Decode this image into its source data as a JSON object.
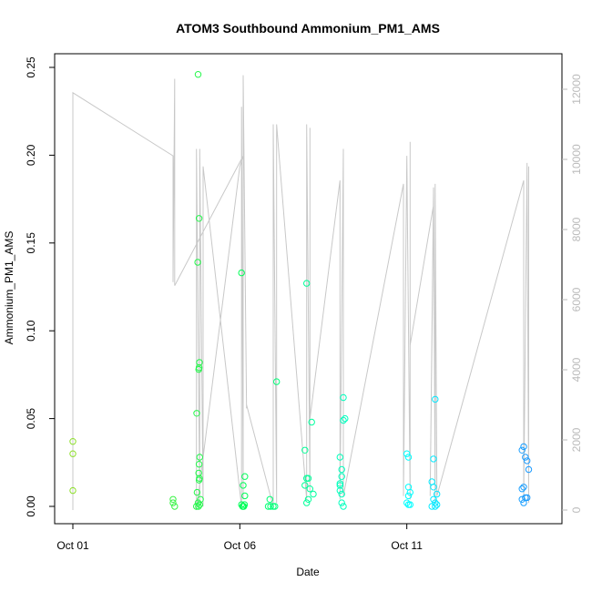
{
  "chart_data": {
    "type": "scatter",
    "title": "ATOM3 Southbound Ammonium_PM1_AMS",
    "xlabel": "Date",
    "ylabel": "Ammonium_PM1_AMS",
    "x_ticks": [
      "Oct 01",
      "Oct 06",
      "Oct 11"
    ],
    "x_tick_days": [
      1,
      6,
      11
    ],
    "xlim": [
      1,
      15.1
    ],
    "ylim": [
      0,
      0.25
    ],
    "y_ticks": [
      0.0,
      0.05,
      0.1,
      0.15,
      0.2,
      0.25
    ],
    "y_tick_labels": [
      "0.00",
      "0.05",
      "0.10",
      "0.15",
      "0.20",
      "0.25"
    ],
    "y2lim": [
      0,
      12000
    ],
    "y2_ticks": [
      0,
      2000,
      4000,
      6000,
      8000,
      10000,
      12000
    ],
    "y2_tick_labels": [
      "0",
      "2000",
      "4000",
      "6000",
      "8000",
      "10000",
      "12000"
    ],
    "grid": false,
    "legend": "none",
    "colors": {
      "axis": "#000000",
      "secondary_axis": "#bbbbbb",
      "altitude_line": "#c8c8c8",
      "point_start": "#8ee02a",
      "point_mid": "#00ff55",
      "point_late": "#00ffff",
      "point_end": "#1e90ff"
    },
    "series": [
      {
        "marker": "open-circle",
        "points": [
          [
            1.0,
            0.037
          ],
          [
            1.0,
            0.03
          ],
          [
            1.0,
            0.009
          ],
          [
            4.0,
            0.004
          ],
          [
            4.0,
            0.002
          ],
          [
            4.05,
            0.0
          ],
          [
            4.75,
            0.246
          ],
          [
            4.78,
            0.164
          ],
          [
            4.74,
            0.139
          ],
          [
            4.79,
            0.082
          ],
          [
            4.78,
            0.079
          ],
          [
            4.77,
            0.078
          ],
          [
            4.71,
            0.053
          ],
          [
            4.8,
            0.028
          ],
          [
            4.78,
            0.024
          ],
          [
            4.77,
            0.019
          ],
          [
            4.79,
            0.016
          ],
          [
            4.78,
            0.015
          ],
          [
            4.72,
            0.008
          ],
          [
            4.82,
            0.004
          ],
          [
            4.75,
            0.002
          ],
          [
            4.8,
            0.001
          ],
          [
            4.7,
            0.0
          ],
          [
            4.76,
            0.0
          ],
          [
            6.05,
            0.133
          ],
          [
            6.15,
            0.017
          ],
          [
            6.1,
            0.012
          ],
          [
            6.15,
            0.006
          ],
          [
            6.05,
            0.001
          ],
          [
            6.1,
            0.0
          ],
          [
            6.12,
            0.0
          ],
          [
            6.08,
            0.0
          ],
          [
            6.14,
            0.001
          ],
          [
            6.9,
            0.004
          ],
          [
            6.85,
            0.0
          ],
          [
            6.92,
            0.0
          ],
          [
            7.0,
            0.0
          ],
          [
            7.05,
            0.0
          ],
          [
            7.1,
            0.071
          ],
          [
            8.0,
            0.127
          ],
          [
            8.15,
            0.048
          ],
          [
            7.95,
            0.032
          ],
          [
            8.05,
            0.016
          ],
          [
            8.0,
            0.016
          ],
          [
            7.95,
            0.012
          ],
          [
            8.1,
            0.01
          ],
          [
            8.2,
            0.007
          ],
          [
            8.05,
            0.004
          ],
          [
            8.0,
            0.002
          ],
          [
            9.1,
            0.062
          ],
          [
            9.15,
            0.05
          ],
          [
            9.1,
            0.049
          ],
          [
            9.0,
            0.028
          ],
          [
            9.05,
            0.021
          ],
          [
            9.05,
            0.017
          ],
          [
            9.0,
            0.013
          ],
          [
            9.0,
            0.012
          ],
          [
            9.05,
            0.007
          ],
          [
            9.0,
            0.009
          ],
          [
            9.05,
            0.002
          ],
          [
            9.1,
            0.0
          ],
          [
            11.0,
            0.03
          ],
          [
            11.05,
            0.028
          ],
          [
            11.05,
            0.011
          ],
          [
            11.1,
            0.008
          ],
          [
            11.05,
            0.006
          ],
          [
            11.0,
            0.002
          ],
          [
            11.05,
            0.001
          ],
          [
            11.1,
            0.001
          ],
          [
            11.85,
            0.061
          ],
          [
            11.8,
            0.027
          ],
          [
            11.75,
            0.014
          ],
          [
            11.8,
            0.011
          ],
          [
            11.9,
            0.007
          ],
          [
            11.8,
            0.004
          ],
          [
            11.85,
            0.002
          ],
          [
            11.9,
            0.001
          ],
          [
            11.75,
            0.0
          ],
          [
            11.85,
            0.0
          ],
          [
            14.5,
            0.034
          ],
          [
            14.45,
            0.032
          ],
          [
            14.55,
            0.028
          ],
          [
            14.6,
            0.026
          ],
          [
            14.65,
            0.021
          ],
          [
            14.5,
            0.011
          ],
          [
            14.45,
            0.01
          ],
          [
            14.6,
            0.005
          ],
          [
            14.55,
            0.005
          ],
          [
            14.5,
            0.002
          ],
          [
            14.45,
            0.004
          ]
        ]
      },
      {
        "axis": "secondary",
        "style": "line",
        "points": [
          [
            1.0,
            0
          ],
          [
            1.0,
            11900
          ],
          [
            4.0,
            10100
          ],
          [
            4.0,
            6500
          ],
          [
            4.05,
            12300
          ],
          [
            4.05,
            6400
          ],
          [
            6.1,
            10100
          ],
          [
            6.0,
            9800
          ],
          [
            4.7,
            0
          ],
          [
            4.7,
            10300
          ],
          [
            4.8,
            200
          ],
          [
            4.8,
            10300
          ],
          [
            4.9,
            100
          ],
          [
            4.9,
            9800
          ],
          [
            6.05,
            100
          ],
          [
            6.05,
            11500
          ],
          [
            6.1,
            300
          ],
          [
            6.1,
            12400
          ],
          [
            6.2,
            2900
          ],
          [
            6.2,
            3000
          ],
          [
            7.0,
            100
          ],
          [
            7.0,
            11000
          ],
          [
            7.1,
            200
          ],
          [
            7.1,
            11000
          ],
          [
            8.0,
            300
          ],
          [
            8.0,
            11000
          ],
          [
            8.1,
            500
          ],
          [
            8.1,
            10900
          ],
          [
            8.1,
            2600
          ],
          [
            9.0,
            9400
          ],
          [
            9.0,
            300
          ],
          [
            9.1,
            10300
          ],
          [
            9.1,
            400
          ],
          [
            10.9,
            9300
          ],
          [
            10.9,
            400
          ],
          [
            11.0,
            10100
          ],
          [
            11.1,
            300
          ],
          [
            11.1,
            10500
          ],
          [
            11.1,
            4700
          ],
          [
            11.8,
            8700
          ],
          [
            11.7,
            400
          ],
          [
            11.8,
            9200
          ],
          [
            11.85,
            200
          ],
          [
            11.85,
            9300
          ],
          [
            11.9,
            400
          ],
          [
            14.5,
            9400
          ],
          [
            14.5,
            300
          ],
          [
            14.6,
            9900
          ],
          [
            14.65,
            200
          ],
          [
            14.65,
            9800
          ]
        ]
      }
    ]
  }
}
